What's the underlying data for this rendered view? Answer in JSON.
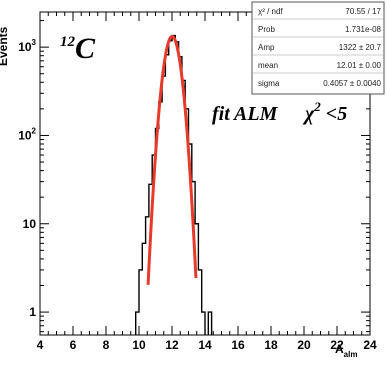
{
  "chart_data": {
    "type": "histogram",
    "xlabel_main": "A",
    "xlabel_sub": "alm",
    "ylabel": "Events",
    "yscale": "log",
    "xlim": [
      4,
      24
    ],
    "ylim": [
      0.55,
      2500
    ],
    "x_ticks": [
      "4",
      "6",
      "8",
      "10",
      "12",
      "14",
      "16",
      "18",
      "20",
      "22",
      "24"
    ],
    "y_ticks": [
      {
        "base": "1",
        "exp": ""
      },
      {
        "base": "10",
        "exp": ""
      },
      {
        "base": "10",
        "exp": "2"
      },
      {
        "base": "10",
        "exp": "3"
      }
    ],
    "annotation_nucleus": {
      "mass": "12",
      "symbol": "C"
    },
    "annotation_fit": {
      "text": "fit ALM",
      "chi": "χ",
      "chi_exp": "2",
      "cut": " <5"
    },
    "stats_box": [
      {
        "label": "χ² / ndf",
        "value": "70.55 / 17"
      },
      {
        "label": "Prob",
        "value": "1.731e-08"
      },
      {
        "label": "Amp",
        "value": "1322 ± 20.7"
      },
      {
        "label": "mean",
        "value": "12.01 ± 0.00"
      },
      {
        "label": "sigma",
        "value": "0.4057 ± 0.0040"
      }
    ],
    "histogram": {
      "bin_width": 0.2,
      "bins": [
        {
          "x": 9.8,
          "y": 1
        },
        {
          "x": 10.0,
          "y": 3
        },
        {
          "x": 10.2,
          "y": 6
        },
        {
          "x": 10.4,
          "y": 12
        },
        {
          "x": 10.6,
          "y": 28
        },
        {
          "x": 10.8,
          "y": 60
        },
        {
          "x": 11.0,
          "y": 120
        },
        {
          "x": 11.2,
          "y": 240
        },
        {
          "x": 11.4,
          "y": 470
        },
        {
          "x": 11.6,
          "y": 820
        },
        {
          "x": 11.8,
          "y": 1180
        },
        {
          "x": 12.0,
          "y": 1350
        },
        {
          "x": 12.2,
          "y": 1150
        },
        {
          "x": 12.4,
          "y": 780
        },
        {
          "x": 12.6,
          "y": 420
        },
        {
          "x": 12.8,
          "y": 200
        },
        {
          "x": 13.0,
          "y": 80
        },
        {
          "x": 13.2,
          "y": 30
        },
        {
          "x": 13.4,
          "y": 10
        },
        {
          "x": 13.6,
          "y": 3
        },
        {
          "x": 13.8,
          "y": 1
        }
      ],
      "extra_bins": [
        {
          "x": 14.2,
          "y": 1
        }
      ]
    },
    "fit": {
      "function": "gaussian",
      "amp": 1322,
      "mean": 12.01,
      "sigma": 0.4057,
      "color": "#e8392a"
    }
  }
}
